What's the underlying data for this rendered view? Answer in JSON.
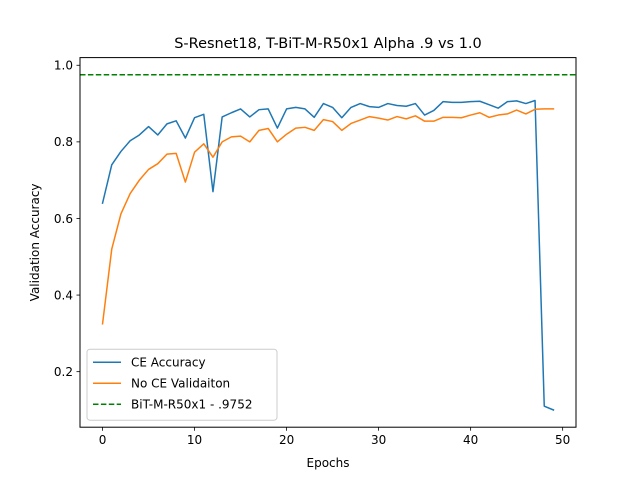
{
  "chart_data": {
    "type": "line",
    "title": "S-Resnet18, T-BiT-M-R50x1 Alpha .9 vs 1.0",
    "xlabel": "Epochs",
    "ylabel": "Validation Accuracy",
    "xlim": [
      -2.45,
      51.45
    ],
    "ylim": [
      0.055,
      1.02
    ],
    "xticks": [
      0,
      10,
      20,
      30,
      40,
      50
    ],
    "yticks": [
      0.2,
      0.4,
      0.6,
      0.8,
      1.0
    ],
    "xtick_labels": [
      "0",
      "10",
      "20",
      "30",
      "40",
      "50"
    ],
    "ytick_labels": [
      "0.2",
      "0.4",
      "0.6",
      "0.8",
      "1.0"
    ],
    "grid": false,
    "legend_position": "lower-left",
    "series": [
      {
        "name": "CE Accuracy",
        "color": "#1f77b4",
        "style": "solid",
        "x": [
          0,
          1,
          2,
          3,
          4,
          5,
          6,
          7,
          8,
          9,
          10,
          11,
          12,
          13,
          14,
          15,
          16,
          17,
          18,
          19,
          20,
          21,
          22,
          23,
          24,
          25,
          26,
          27,
          28,
          29,
          30,
          31,
          32,
          33,
          34,
          35,
          36,
          37,
          38,
          39,
          40,
          41,
          42,
          43,
          44,
          45,
          46,
          47,
          48,
          49
        ],
        "values": [
          0.64,
          0.74,
          0.775,
          0.803,
          0.818,
          0.84,
          0.818,
          0.847,
          0.855,
          0.81,
          0.863,
          0.872,
          0.67,
          0.865,
          0.876,
          0.886,
          0.865,
          0.884,
          0.886,
          0.836,
          0.886,
          0.89,
          0.886,
          0.864,
          0.9,
          0.89,
          0.863,
          0.89,
          0.9,
          0.892,
          0.89,
          0.9,
          0.895,
          0.893,
          0.9,
          0.87,
          0.882,
          0.905,
          0.903,
          0.903,
          0.905,
          0.906,
          0.897,
          0.888,
          0.905,
          0.907,
          0.9,
          0.908,
          0.11,
          0.1
        ]
      },
      {
        "name": "No CE Validaiton",
        "color": "#ff7f0e",
        "style": "solid",
        "x": [
          0,
          1,
          2,
          3,
          4,
          5,
          6,
          7,
          8,
          9,
          10,
          11,
          12,
          13,
          14,
          15,
          16,
          17,
          18,
          19,
          20,
          21,
          22,
          23,
          24,
          25,
          26,
          27,
          28,
          29,
          30,
          31,
          32,
          33,
          34,
          35,
          36,
          37,
          38,
          39,
          40,
          41,
          42,
          43,
          44,
          45,
          46,
          47,
          48,
          49
        ],
        "values": [
          0.325,
          0.52,
          0.612,
          0.665,
          0.7,
          0.728,
          0.743,
          0.768,
          0.77,
          0.695,
          0.773,
          0.795,
          0.76,
          0.8,
          0.813,
          0.815,
          0.8,
          0.83,
          0.835,
          0.8,
          0.82,
          0.836,
          0.838,
          0.83,
          0.858,
          0.853,
          0.83,
          0.848,
          0.857,
          0.866,
          0.862,
          0.857,
          0.866,
          0.86,
          0.868,
          0.854,
          0.854,
          0.864,
          0.864,
          0.863,
          0.87,
          0.876,
          0.864,
          0.87,
          0.873,
          0.883,
          0.873,
          0.885,
          0.886,
          0.886
        ]
      },
      {
        "name": "BiT-M-R50x1 - .9752",
        "color": "#008000",
        "style": "dashed",
        "x": [
          -2.45,
          51.45
        ],
        "values": [
          0.9752,
          0.9752
        ]
      }
    ]
  }
}
